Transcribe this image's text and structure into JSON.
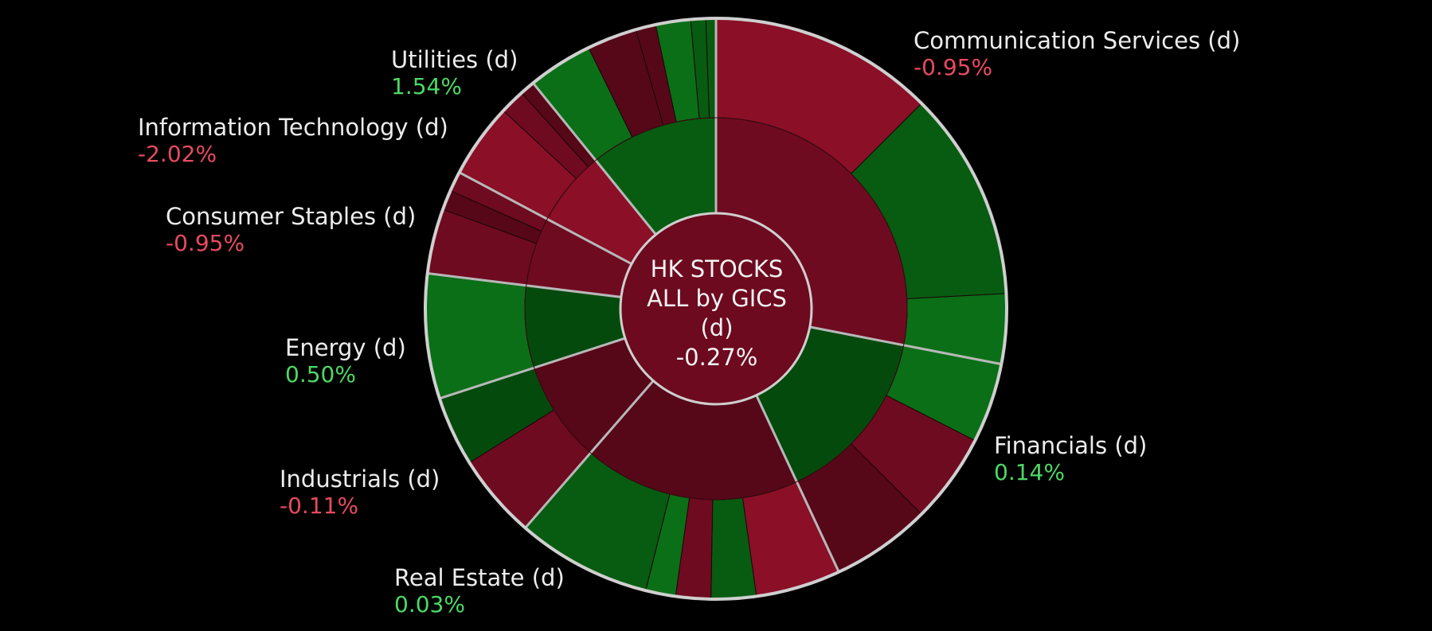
{
  "chart_data": {
    "type": "sunburst",
    "center": {
      "line1": "HK STOCKS",
      "line2": "ALL by GICS",
      "line3": "(d)",
      "value": "-0.27%"
    },
    "sectors": [
      {
        "name": "Communication Services (d)",
        "change": "-0.95%",
        "trend": "neg",
        "label_anchor": "right"
      },
      {
        "name": "Financials (d)",
        "change": "0.14%",
        "trend": "pos",
        "label_anchor": "right"
      },
      {
        "name": "Real Estate (d)",
        "change": "0.03%",
        "trend": "pos",
        "label_anchor": "left"
      },
      {
        "name": "Industrials (d)",
        "change": "-0.11%",
        "trend": "neg",
        "label_anchor": "left"
      },
      {
        "name": "Energy (d)",
        "change": "0.50%",
        "trend": "pos",
        "label_anchor": "left"
      },
      {
        "name": "Consumer Staples (d)",
        "change": "-0.95%",
        "trend": "neg",
        "label_anchor": "left"
      },
      {
        "name": "Information Technology (d)",
        "change": "-2.02%",
        "trend": "neg",
        "label_anchor": "left"
      },
      {
        "name": "Utilities (d)",
        "change": "1.54%",
        "trend": "pos",
        "label_anchor": "left"
      }
    ],
    "colors": {
      "background": "#000000",
      "neg_strong": "#8a0f27",
      "neg": "#6f0b20",
      "neg_dark": "#560818",
      "pos_strong": "#0b6f17",
      "pos": "#075c11",
      "pos_dark": "#054a0d",
      "separator": "#b8b8b8",
      "ring_edge": "#cfcfcf"
    }
  }
}
